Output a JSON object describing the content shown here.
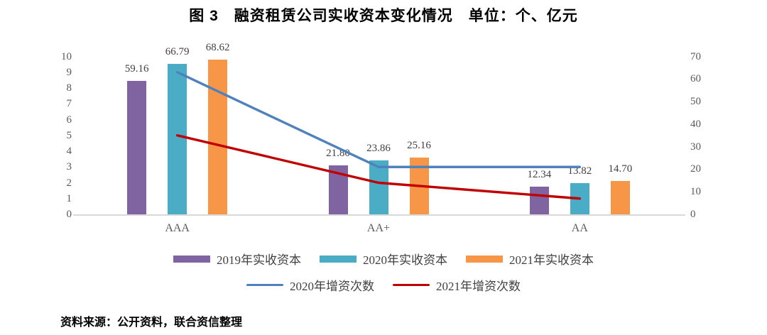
{
  "title": "图 3　融资租赁公司实收资本变化情况　单位：个、亿元",
  "source": "资料来源：公开资料，联合资信整理",
  "colors": {
    "bar_2019": "#8064A2",
    "bar_2020": "#4BACC6",
    "bar_2021": "#F79646",
    "line_2020": "#4F81BD",
    "line_2021": "#C00000",
    "axis_line": "#D9D9D9",
    "tick_text": "#595959",
    "label_text": "#404040"
  },
  "chart_data": {
    "type": "bar",
    "subtype": "bar-line-combo",
    "categories": [
      "AAA",
      "AA+",
      "AA"
    ],
    "bar_series": [
      {
        "name": "2019年实收资本",
        "color": "#8064A2",
        "axis": "right",
        "values": [
          59.16,
          21.8,
          12.34
        ],
        "labels": [
          "59.16",
          "21.80",
          "12.34"
        ]
      },
      {
        "name": "2020年实收资本",
        "color": "#4BACC6",
        "axis": "right",
        "values": [
          66.79,
          23.86,
          13.82
        ],
        "labels": [
          "66.79",
          "23.86",
          "13.82"
        ]
      },
      {
        "name": "2021年实收资本",
        "color": "#F79646",
        "axis": "right",
        "values": [
          68.62,
          25.16,
          14.7
        ],
        "labels": [
          "68.62",
          "25.16",
          "14.70"
        ]
      }
    ],
    "line_series": [
      {
        "name": "2020年增资次数",
        "color": "#4F81BD",
        "axis": "left",
        "values": [
          9,
          3,
          3
        ]
      },
      {
        "name": "2021年增资次数",
        "color": "#C00000",
        "axis": "left",
        "values": [
          5,
          2,
          1
        ]
      }
    ],
    "left_axis": {
      "min": 0,
      "max": 10,
      "step": 1,
      "ticks": [
        0,
        1,
        2,
        3,
        4,
        5,
        6,
        7,
        8,
        9,
        10
      ]
    },
    "right_axis": {
      "min": 0,
      "max": 70,
      "step": 10,
      "ticks": [
        0,
        10,
        20,
        30,
        40,
        50,
        60,
        70
      ]
    },
    "grid": false,
    "legend_position": "bottom",
    "title": "图 3　融资租赁公司实收资本变化情况　单位：个、亿元"
  }
}
